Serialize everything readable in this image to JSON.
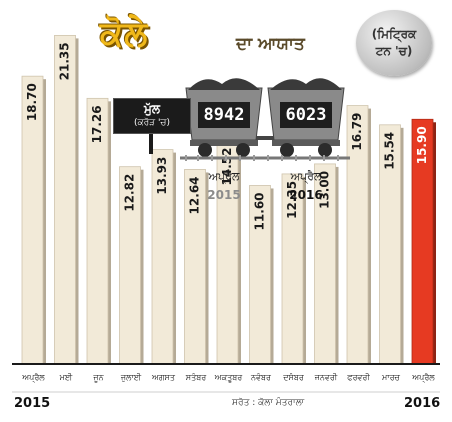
{
  "header": {
    "title": "ਕੋਲੇ",
    "subtitle": "ਦਾ ਆਯਾਤ",
    "unit_line1": "(ਮਿਟ੍ਰਿਕ",
    "unit_line2": "ਟਨ 'ਚ)"
  },
  "price_sign": {
    "title": "ਮੁੱਲ",
    "subtitle": "(ਕਰੋੜ 'ਚ)"
  },
  "comparison": [
    {
      "value": "8942",
      "month": "ਅਪ੍ਰੈਲ",
      "year": "2015",
      "year_color": "#8c8c8c"
    },
    {
      "value": "6023",
      "month": "ਅਪ੍ਰੈਲ",
      "year": "2016",
      "year_color": "#111111"
    }
  ],
  "footer": {
    "year_start": "2015",
    "year_end": "2016",
    "source": "ਸਰੋਤ : ਕੋਲਾ ਮੰਤਰਾਲਾ"
  },
  "colors": {
    "bar_fill": "#f2ead8",
    "bar_highlight": "#e63a22",
    "bar_shadow": "#b5aa96",
    "background": "#ffffff",
    "baseline": "#1a1a1a"
  },
  "chart_data": {
    "type": "bar",
    "title": "ਕੋਲੇ ਦਾ ਆਯਾਤ",
    "ylabel": "",
    "ylim": [
      0,
      23
    ],
    "grid": false,
    "categories": [
      "ਅਪ੍ਰੈਲ",
      "ਮਈ",
      "ਜੂਨ",
      "ਜੁਲਾਈ",
      "ਅਗਸਤ",
      "ਸਤੰਬਰ",
      "ਅਕਤੂਬਰ",
      "ਨਵੰਬਰ",
      "ਦਸੰਬਰ",
      "ਜਨਵਰੀ",
      "ਫਰਵਰੀ",
      "ਮਾਰਚ",
      "ਅਪ੍ਰੈਲ"
    ],
    "values": [
      18.7,
      21.35,
      17.26,
      12.82,
      13.93,
      12.64,
      14.52,
      11.6,
      12.35,
      13.0,
      16.79,
      15.54,
      15.9
    ],
    "value_labels": [
      "18.70",
      "21.35",
      "17.26",
      "12.82",
      "13.93",
      "12.64",
      "14.52",
      "11.60",
      "12.35",
      "13.00",
      "16.79",
      "15.54",
      "15.90"
    ],
    "highlight_index": 12
  }
}
